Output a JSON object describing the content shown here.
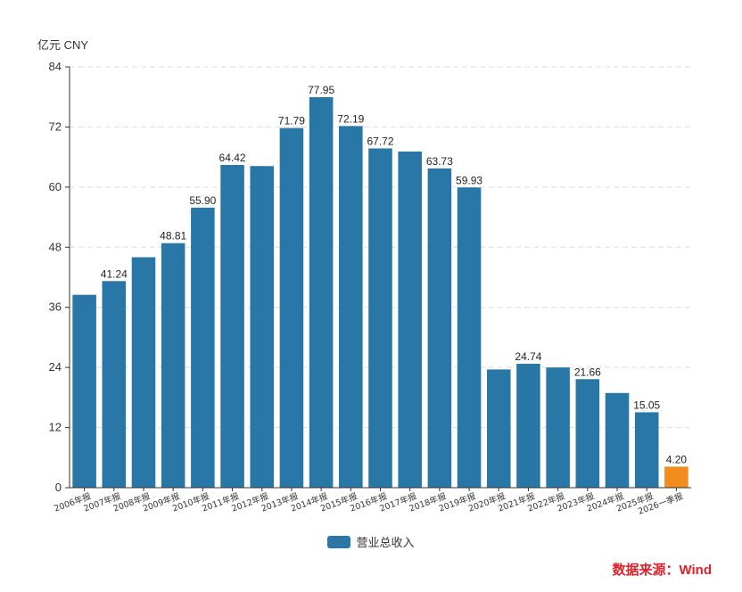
{
  "unit_label": "亿元  CNY",
  "legend_label": "营业总收入",
  "source_text": "数据来源：Wind",
  "colors": {
    "bar": "#2877a7",
    "highlight": "#f38c1f",
    "grid": "#dddddd",
    "axis": "#333333",
    "source": "#e0202a"
  },
  "chart_data": {
    "type": "bar",
    "categories": [
      "2006年报",
      "2007年报",
      "2008年报",
      "2009年报",
      "2010年报",
      "2011年报",
      "2012年报",
      "2013年报",
      "2014年报",
      "2015年报",
      "2016年报",
      "2017年报",
      "2018年报",
      "2019年报",
      "2020年报",
      "2021年报",
      "2022年报",
      "2023年报",
      "2024年报",
      "2025年报",
      "2026一季报"
    ],
    "series": [
      {
        "name": "营业总收入",
        "values": [
          38.5,
          41.24,
          46.0,
          48.81,
          55.9,
          64.42,
          64.2,
          71.79,
          77.95,
          72.19,
          67.72,
          67.1,
          63.73,
          59.93,
          23.6,
          24.74,
          24.0,
          21.66,
          18.9,
          15.05,
          4.2
        ]
      }
    ],
    "data_labels": [
      "",
      "41.24",
      "",
      "48.81",
      "55.90",
      "64.42",
      "",
      "71.79",
      "77.95",
      "72.19",
      "67.72",
      "",
      "63.73",
      "59.93",
      "",
      "24.74",
      "",
      "21.66",
      "",
      "15.05",
      "4.20"
    ],
    "highlight_index": 20,
    "yticks": [
      0,
      12,
      24,
      36,
      48,
      60,
      72,
      84
    ],
    "ylim": [
      0,
      84
    ],
    "grid": true,
    "legend_position": "bottom"
  }
}
